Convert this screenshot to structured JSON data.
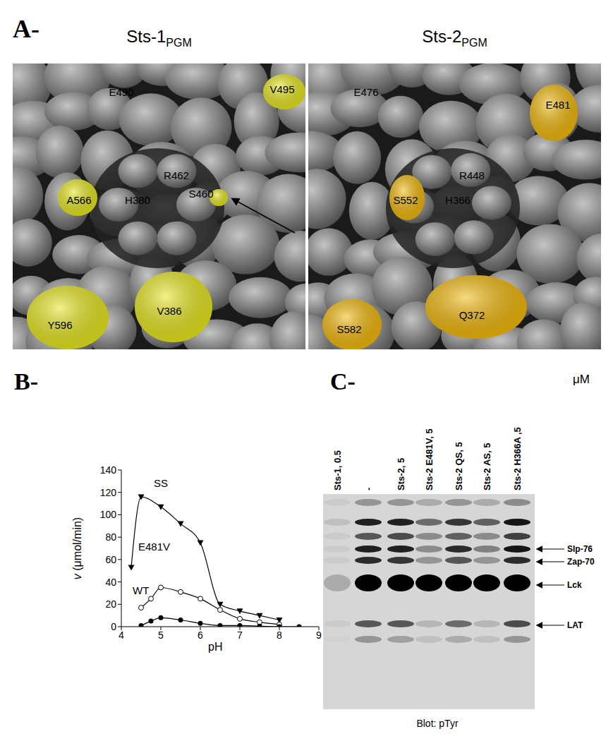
{
  "panel_a": {
    "label": "A-",
    "panels": [
      {
        "title": "Sts-1",
        "title_subscript": "PGM",
        "highlight_color": "#e6e619",
        "residues": [
          {
            "label": "V495",
            "highlighted": true
          },
          {
            "label": "E490",
            "highlighted": false
          },
          {
            "label": "R462",
            "highlighted": false
          },
          {
            "label": "S460",
            "highlighted": true
          },
          {
            "label": "A566",
            "highlighted": true
          },
          {
            "label": "H380",
            "highlighted": false
          },
          {
            "label": "Y596",
            "highlighted": true
          },
          {
            "label": "V386",
            "highlighted": true
          }
        ]
      },
      {
        "title": "Sts-2",
        "title_subscript": "PGM",
        "highlight_color": "#f2b705",
        "residues": [
          {
            "label": "E476",
            "highlighted": false
          },
          {
            "label": "E481",
            "highlighted": true
          },
          {
            "label": "R448",
            "highlighted": false
          },
          {
            "label": "S552",
            "highlighted": true
          },
          {
            "label": "H366",
            "highlighted": false
          },
          {
            "label": "Q372",
            "highlighted": true
          },
          {
            "label": "S582",
            "highlighted": true
          }
        ]
      }
    ]
  },
  "chart_data": {
    "type": "line",
    "panel_label": "B-",
    "x_label": "pH",
    "y_label": "v (μmol/min)",
    "xlim": [
      4,
      9
    ],
    "xticks": [
      4,
      5,
      6,
      7,
      8,
      9
    ],
    "ylim": [
      0,
      140
    ],
    "yticks": [
      0,
      20,
      40,
      60,
      80,
      100,
      120,
      140
    ],
    "grid": false,
    "series": [
      {
        "name": "SS",
        "color": "#000000",
        "marker": "triangle-down",
        "x": [
          4.25,
          4.5,
          5,
          5.5,
          6,
          6.5,
          7,
          7.5,
          8
        ],
        "values": [
          53,
          116,
          107,
          92,
          75,
          20,
          14,
          10,
          6
        ]
      },
      {
        "name": "E481V",
        "color": "#000000",
        "marker": "circle-open",
        "x": [
          4.5,
          4.75,
          5,
          5.5,
          6,
          6.5,
          7,
          7.5,
          8
        ],
        "values": [
          17,
          25,
          35,
          31,
          25,
          15,
          7,
          4,
          2
        ]
      },
      {
        "name": "WT",
        "color": "#000000",
        "marker": "circle",
        "x": [
          4.5,
          4.75,
          5,
          5.5,
          6,
          6.5,
          7,
          7.5,
          8,
          8.5
        ],
        "values": [
          1,
          5,
          8,
          6,
          3,
          1,
          1,
          0.5,
          0,
          0
        ]
      }
    ]
  },
  "panel_c": {
    "label": "C-",
    "unit": "μM",
    "lanes": [
      "Sts-1, 0.5",
      "-",
      "Sts-2, 5",
      "Sts-2 E481V, 5",
      "Sts-2 QS, 5",
      "Sts-2 AS, 5",
      "Sts-2 H366A ,5"
    ],
    "bands": [
      "Slp-76",
      "Zap-70",
      "Lck",
      "LAT"
    ],
    "caption": "Blot: pTyr"
  }
}
